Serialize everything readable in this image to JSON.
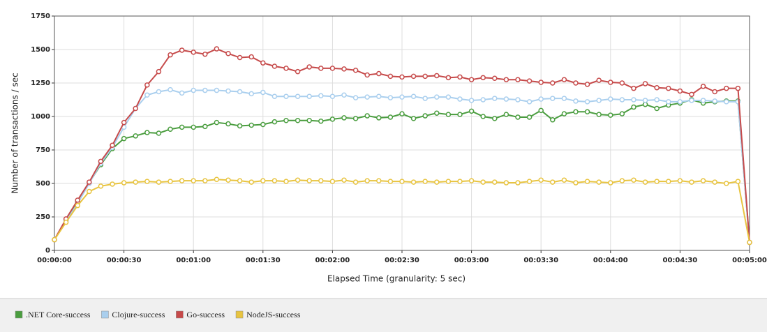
{
  "chart_data": {
    "type": "line",
    "y_label": "Number of transactions / sec",
    "x_label": "Elapsed Time (granularity: 5 sec)",
    "x": [
      0,
      5,
      10,
      15,
      20,
      25,
      30,
      35,
      40,
      45,
      50,
      55,
      60,
      65,
      70,
      75,
      80,
      85,
      90,
      95,
      100,
      105,
      110,
      115,
      120,
      125,
      130,
      135,
      140,
      145,
      150,
      155,
      160,
      165,
      170,
      175,
      180,
      185,
      190,
      195,
      200,
      205,
      210,
      215,
      220,
      225,
      230,
      235,
      240,
      245,
      250,
      255,
      260,
      265,
      270,
      275,
      280,
      285,
      290,
      295,
      300
    ],
    "xlim": [
      0,
      300
    ],
    "xticks": [
      {
        "value": 0,
        "label": "00:00:00"
      },
      {
        "value": 30,
        "label": "00:00:30"
      },
      {
        "value": 60,
        "label": "00:01:00"
      },
      {
        "value": 90,
        "label": "00:01:30"
      },
      {
        "value": 120,
        "label": "00:02:00"
      },
      {
        "value": 150,
        "label": "00:02:30"
      },
      {
        "value": 180,
        "label": "00:03:00"
      },
      {
        "value": 210,
        "label": "00:03:30"
      },
      {
        "value": 240,
        "label": "00:04:00"
      },
      {
        "value": 270,
        "label": "00:04:30"
      },
      {
        "value": 300,
        "label": "00:05:00"
      }
    ],
    "ylim": [
      0,
      1750
    ],
    "yticks": [
      0,
      250,
      500,
      750,
      1000,
      1250,
      1500,
      1750
    ],
    "grid": true,
    "legend": "bottom",
    "series": [
      {
        "name": ".NET Core-success",
        "color": "#4a9d3f",
        "values": [
          80,
          225,
          360,
          505,
          640,
          760,
          835,
          855,
          880,
          875,
          905,
          920,
          920,
          925,
          955,
          945,
          930,
          935,
          940,
          960,
          970,
          970,
          970,
          965,
          980,
          990,
          985,
          1005,
          990,
          995,
          1020,
          985,
          1005,
          1025,
          1015,
          1015,
          1040,
          1000,
          985,
          1015,
          995,
          995,
          1045,
          975,
          1020,
          1035,
          1035,
          1015,
          1010,
          1020,
          1070,
          1090,
          1060,
          1085,
          1100,
          1125,
          1100,
          1110,
          1115,
          1115,
          60
        ]
      },
      {
        "name": "Clojure-success",
        "color": "#aacfee",
        "values": [
          80,
          220,
          350,
          500,
          650,
          770,
          920,
          1060,
          1160,
          1185,
          1200,
          1175,
          1195,
          1195,
          1195,
          1190,
          1185,
          1170,
          1180,
          1150,
          1150,
          1150,
          1150,
          1155,
          1150,
          1160,
          1140,
          1145,
          1150,
          1140,
          1145,
          1150,
          1135,
          1145,
          1145,
          1130,
          1120,
          1125,
          1135,
          1130,
          1125,
          1110,
          1130,
          1135,
          1135,
          1115,
          1110,
          1120,
          1130,
          1125,
          1125,
          1120,
          1125,
          1110,
          1110,
          1120,
          1120,
          1115,
          1110,
          1110,
          60
        ]
      },
      {
        "name": "Go-success",
        "color": "#c64a4a",
        "values": [
          80,
          235,
          375,
          510,
          665,
          785,
          955,
          1060,
          1235,
          1335,
          1460,
          1495,
          1480,
          1465,
          1505,
          1470,
          1440,
          1445,
          1400,
          1375,
          1360,
          1335,
          1370,
          1360,
          1360,
          1355,
          1345,
          1310,
          1320,
          1300,
          1295,
          1300,
          1300,
          1305,
          1290,
          1295,
          1275,
          1290,
          1285,
          1275,
          1275,
          1265,
          1255,
          1250,
          1275,
          1250,
          1240,
          1270,
          1255,
          1250,
          1210,
          1245,
          1215,
          1210,
          1190,
          1165,
          1225,
          1185,
          1210,
          1210,
          60
        ]
      },
      {
        "name": "NodeJS-success",
        "color": "#e8c440",
        "values": [
          80,
          210,
          335,
          440,
          480,
          495,
          505,
          510,
          515,
          510,
          515,
          520,
          520,
          520,
          530,
          525,
          520,
          510,
          520,
          520,
          515,
          525,
          520,
          520,
          515,
          525,
          510,
          520,
          520,
          515,
          515,
          510,
          515,
          510,
          515,
          515,
          520,
          510,
          510,
          505,
          505,
          515,
          525,
          510,
          525,
          505,
          515,
          510,
          505,
          520,
          525,
          510,
          515,
          515,
          520,
          510,
          520,
          510,
          500,
          515,
          60
        ]
      }
    ]
  }
}
